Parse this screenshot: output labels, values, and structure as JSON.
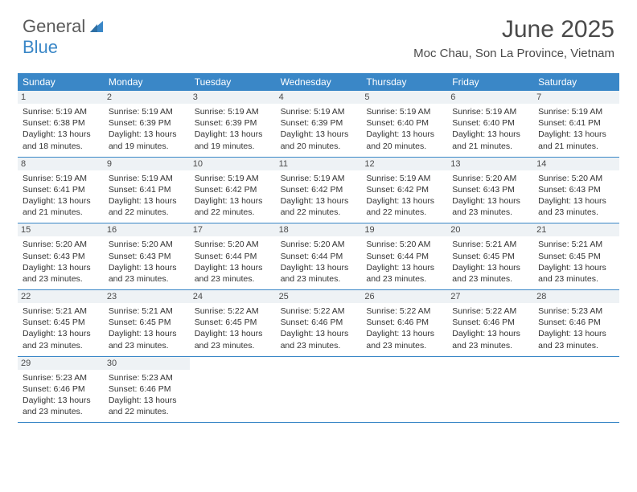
{
  "brand": {
    "part1": "General",
    "part2": "Blue"
  },
  "header": {
    "month_title": "June 2025",
    "location": "Moc Chau, Son La Province, Vietnam"
  },
  "colors": {
    "header_bg": "#3a87c7",
    "daynum_bg": "#eef2f5",
    "week_border": "#3a87c7",
    "text": "#323232"
  },
  "day_names": [
    "Sunday",
    "Monday",
    "Tuesday",
    "Wednesday",
    "Thursday",
    "Friday",
    "Saturday"
  ],
  "days": [
    {
      "n": "1",
      "sunrise": "Sunrise: 5:19 AM",
      "sunset": "Sunset: 6:38 PM",
      "d1": "Daylight: 13 hours",
      "d2": "and 18 minutes."
    },
    {
      "n": "2",
      "sunrise": "Sunrise: 5:19 AM",
      "sunset": "Sunset: 6:39 PM",
      "d1": "Daylight: 13 hours",
      "d2": "and 19 minutes."
    },
    {
      "n": "3",
      "sunrise": "Sunrise: 5:19 AM",
      "sunset": "Sunset: 6:39 PM",
      "d1": "Daylight: 13 hours",
      "d2": "and 19 minutes."
    },
    {
      "n": "4",
      "sunrise": "Sunrise: 5:19 AM",
      "sunset": "Sunset: 6:39 PM",
      "d1": "Daylight: 13 hours",
      "d2": "and 20 minutes."
    },
    {
      "n": "5",
      "sunrise": "Sunrise: 5:19 AM",
      "sunset": "Sunset: 6:40 PM",
      "d1": "Daylight: 13 hours",
      "d2": "and 20 minutes."
    },
    {
      "n": "6",
      "sunrise": "Sunrise: 5:19 AM",
      "sunset": "Sunset: 6:40 PM",
      "d1": "Daylight: 13 hours",
      "d2": "and 21 minutes."
    },
    {
      "n": "7",
      "sunrise": "Sunrise: 5:19 AM",
      "sunset": "Sunset: 6:41 PM",
      "d1": "Daylight: 13 hours",
      "d2": "and 21 minutes."
    },
    {
      "n": "8",
      "sunrise": "Sunrise: 5:19 AM",
      "sunset": "Sunset: 6:41 PM",
      "d1": "Daylight: 13 hours",
      "d2": "and 21 minutes."
    },
    {
      "n": "9",
      "sunrise": "Sunrise: 5:19 AM",
      "sunset": "Sunset: 6:41 PM",
      "d1": "Daylight: 13 hours",
      "d2": "and 22 minutes."
    },
    {
      "n": "10",
      "sunrise": "Sunrise: 5:19 AM",
      "sunset": "Sunset: 6:42 PM",
      "d1": "Daylight: 13 hours",
      "d2": "and 22 minutes."
    },
    {
      "n": "11",
      "sunrise": "Sunrise: 5:19 AM",
      "sunset": "Sunset: 6:42 PM",
      "d1": "Daylight: 13 hours",
      "d2": "and 22 minutes."
    },
    {
      "n": "12",
      "sunrise": "Sunrise: 5:19 AM",
      "sunset": "Sunset: 6:42 PM",
      "d1": "Daylight: 13 hours",
      "d2": "and 22 minutes."
    },
    {
      "n": "13",
      "sunrise": "Sunrise: 5:20 AM",
      "sunset": "Sunset: 6:43 PM",
      "d1": "Daylight: 13 hours",
      "d2": "and 23 minutes."
    },
    {
      "n": "14",
      "sunrise": "Sunrise: 5:20 AM",
      "sunset": "Sunset: 6:43 PM",
      "d1": "Daylight: 13 hours",
      "d2": "and 23 minutes."
    },
    {
      "n": "15",
      "sunrise": "Sunrise: 5:20 AM",
      "sunset": "Sunset: 6:43 PM",
      "d1": "Daylight: 13 hours",
      "d2": "and 23 minutes."
    },
    {
      "n": "16",
      "sunrise": "Sunrise: 5:20 AM",
      "sunset": "Sunset: 6:43 PM",
      "d1": "Daylight: 13 hours",
      "d2": "and 23 minutes."
    },
    {
      "n": "17",
      "sunrise": "Sunrise: 5:20 AM",
      "sunset": "Sunset: 6:44 PM",
      "d1": "Daylight: 13 hours",
      "d2": "and 23 minutes."
    },
    {
      "n": "18",
      "sunrise": "Sunrise: 5:20 AM",
      "sunset": "Sunset: 6:44 PM",
      "d1": "Daylight: 13 hours",
      "d2": "and 23 minutes."
    },
    {
      "n": "19",
      "sunrise": "Sunrise: 5:20 AM",
      "sunset": "Sunset: 6:44 PM",
      "d1": "Daylight: 13 hours",
      "d2": "and 23 minutes."
    },
    {
      "n": "20",
      "sunrise": "Sunrise: 5:21 AM",
      "sunset": "Sunset: 6:45 PM",
      "d1": "Daylight: 13 hours",
      "d2": "and 23 minutes."
    },
    {
      "n": "21",
      "sunrise": "Sunrise: 5:21 AM",
      "sunset": "Sunset: 6:45 PM",
      "d1": "Daylight: 13 hours",
      "d2": "and 23 minutes."
    },
    {
      "n": "22",
      "sunrise": "Sunrise: 5:21 AM",
      "sunset": "Sunset: 6:45 PM",
      "d1": "Daylight: 13 hours",
      "d2": "and 23 minutes."
    },
    {
      "n": "23",
      "sunrise": "Sunrise: 5:21 AM",
      "sunset": "Sunset: 6:45 PM",
      "d1": "Daylight: 13 hours",
      "d2": "and 23 minutes."
    },
    {
      "n": "24",
      "sunrise": "Sunrise: 5:22 AM",
      "sunset": "Sunset: 6:45 PM",
      "d1": "Daylight: 13 hours",
      "d2": "and 23 minutes."
    },
    {
      "n": "25",
      "sunrise": "Sunrise: 5:22 AM",
      "sunset": "Sunset: 6:46 PM",
      "d1": "Daylight: 13 hours",
      "d2": "and 23 minutes."
    },
    {
      "n": "26",
      "sunrise": "Sunrise: 5:22 AM",
      "sunset": "Sunset: 6:46 PM",
      "d1": "Daylight: 13 hours",
      "d2": "and 23 minutes."
    },
    {
      "n": "27",
      "sunrise": "Sunrise: 5:22 AM",
      "sunset": "Sunset: 6:46 PM",
      "d1": "Daylight: 13 hours",
      "d2": "and 23 minutes."
    },
    {
      "n": "28",
      "sunrise": "Sunrise: 5:23 AM",
      "sunset": "Sunset: 6:46 PM",
      "d1": "Daylight: 13 hours",
      "d2": "and 23 minutes."
    },
    {
      "n": "29",
      "sunrise": "Sunrise: 5:23 AM",
      "sunset": "Sunset: 6:46 PM",
      "d1": "Daylight: 13 hours",
      "d2": "and 23 minutes."
    },
    {
      "n": "30",
      "sunrise": "Sunrise: 5:23 AM",
      "sunset": "Sunset: 6:46 PM",
      "d1": "Daylight: 13 hours",
      "d2": "and 22 minutes."
    }
  ],
  "calendar": {
    "first_weekday_offset": 0,
    "weeks": 5
  }
}
